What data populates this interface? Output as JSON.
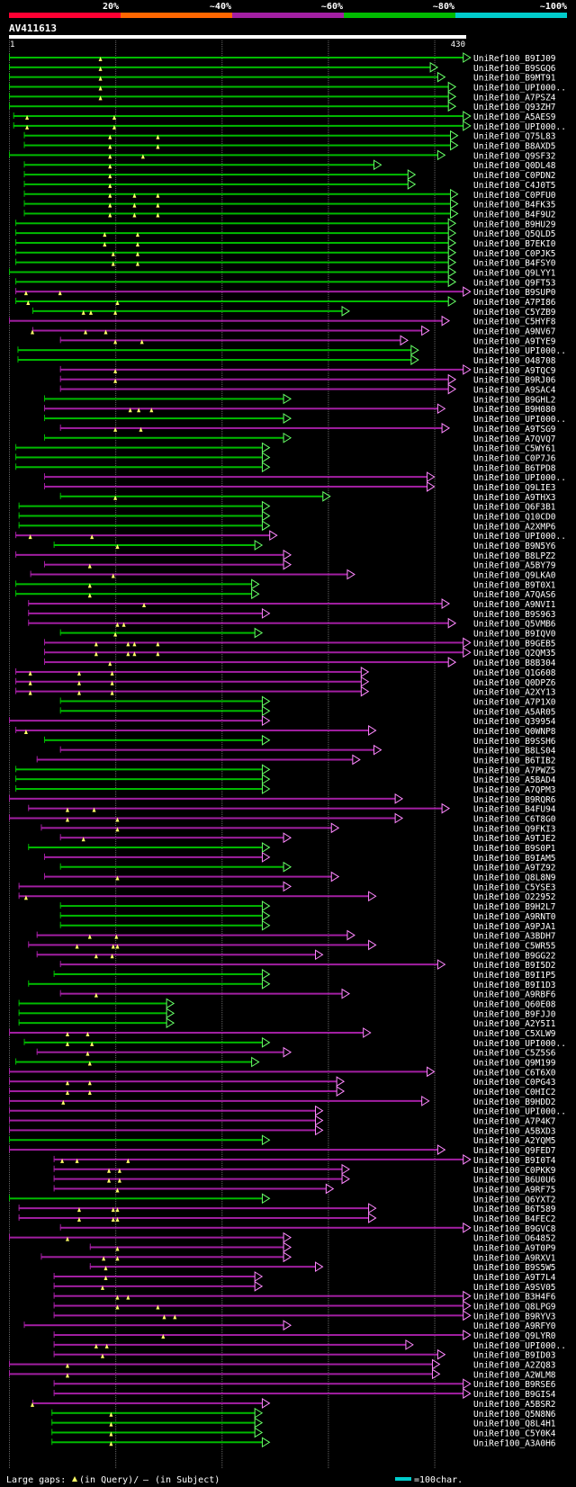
{
  "chart_data": {
    "type": "alignment-overview",
    "title": "AV411613",
    "query_start_label": "1",
    "query_length": 430,
    "query_length_label": "430",
    "scale_labels": [
      "20%",
      "~40%",
      "~60%",
      "~80%",
      "~100%"
    ],
    "identity_bins": [
      {
        "label": "20%",
        "color": "#ff0033"
      },
      {
        "label": "~40%",
        "color": "#ff6600"
      },
      {
        "label": "~60%",
        "color": "#a21fa2"
      },
      {
        "label": "~80%",
        "color": "#00bb00"
      },
      {
        "label": "~100%",
        "color": "#00cccc"
      }
    ],
    "gridlines": [
      0,
      100,
      200,
      300,
      400
    ],
    "colors": {
      "green": "#00bb00",
      "green_arrow": "#66ff66",
      "magenta": "#a21fa2",
      "magenta_arrow": "#ff88ff",
      "gap_marker": "#ffff66",
      "grid": "#666666"
    },
    "legend": {
      "prefix": "Large gaps: ",
      "query_text": "(in Query)/",
      "subject_symbol": "–",
      "subject_text": " (in Subject)",
      "scale_text": "=100char."
    },
    "hits": [
      [
        "UniRef100_B9IJ09",
        "g",
        0,
        434,
        [
          86
        ]
      ],
      [
        "UniRef100_B9SGQ6",
        "g",
        0,
        403,
        [
          86
        ]
      ],
      [
        "UniRef100_B9MT91",
        "g",
        0,
        410,
        [
          86
        ]
      ],
      [
        "UniRef100_UPI000..",
        "g",
        0,
        420,
        [
          86
        ]
      ],
      [
        "UniRef100_A7PSZ4",
        "g",
        0,
        420,
        [
          86
        ]
      ],
      [
        "UniRef100_Q93ZH7",
        "g",
        0,
        420,
        []
      ],
      [
        "UniRef100_A5AES9",
        "g",
        4,
        434,
        [
          17,
          99
        ]
      ],
      [
        "UniRef100_UPI000..",
        "g",
        4,
        434,
        [
          17,
          99
        ]
      ],
      [
        "UniRef100_Q75L83",
        "g",
        14,
        422,
        [
          95,
          140
        ]
      ],
      [
        "UniRef100_B8AXD5",
        "g",
        14,
        422,
        [
          95,
          140
        ]
      ],
      [
        "UniRef100_Q9SF32",
        "g",
        0,
        410,
        [
          95,
          126
        ]
      ],
      [
        "UniRef100_Q0DL48",
        "g",
        14,
        350,
        [
          95
        ]
      ],
      [
        "UniRef100_C0PDN2",
        "g",
        14,
        382,
        [
          95
        ]
      ],
      [
        "UniRef100_C4J0T5",
        "g",
        14,
        382,
        [
          95
        ]
      ],
      [
        "UniRef100_C0PFU0",
        "g",
        14,
        422,
        [
          95,
          118,
          140
        ]
      ],
      [
        "UniRef100_B4FK35",
        "g",
        14,
        422,
        [
          95,
          118,
          140
        ]
      ],
      [
        "UniRef100_B4F9U2",
        "g",
        14,
        422,
        [
          95,
          118,
          140
        ]
      ],
      [
        "UniRef100_B9HU29",
        "g",
        6,
        420,
        []
      ],
      [
        "UniRef100_Q5QLD5",
        "g",
        6,
        420,
        [
          90,
          121
        ]
      ],
      [
        "UniRef100_B7EKI0",
        "g",
        6,
        420,
        [
          90,
          121
        ]
      ],
      [
        "UniRef100_C0PJK5",
        "g",
        6,
        420,
        [
          98,
          121
        ]
      ],
      [
        "UniRef100_B4FSY0",
        "g",
        6,
        420,
        [
          98,
          121
        ]
      ],
      [
        "UniRef100_Q9LYY1",
        "g",
        0,
        420,
        []
      ],
      [
        "UniRef100_Q9FT53",
        "g",
        6,
        420,
        []
      ],
      [
        "UniRef100_B9SUP0",
        "m",
        6,
        434,
        [
          16,
          48
        ]
      ],
      [
        "UniRef100_A7PI86",
        "g",
        6,
        420,
        [
          18,
          102
        ]
      ],
      [
        "UniRef100_C5YZB9",
        "g",
        22,
        320,
        [
          70,
          77,
          100
        ]
      ],
      [
        "UniRef100_C5HYF8",
        "m",
        0,
        414,
        []
      ],
      [
        "UniRef100_A9NV67",
        "m",
        22,
        395,
        [
          22,
          72,
          91
        ]
      ],
      [
        "UniRef100_A9TYE9",
        "m",
        48,
        375,
        [
          100,
          125
        ]
      ],
      [
        "UniRef100_UPI000..",
        "g",
        8,
        385,
        []
      ],
      [
        "UniRef100_O48708",
        "g",
        8,
        385,
        []
      ],
      [
        "UniRef100_A9TQC9",
        "m",
        48,
        434,
        [
          100
        ]
      ],
      [
        "UniRef100_B9RJ06",
        "m",
        48,
        420,
        [
          100
        ]
      ],
      [
        "UniRef100_A9SAC4",
        "m",
        48,
        420,
        []
      ],
      [
        "UniRef100_B9GHL2",
        "g",
        33,
        265,
        []
      ],
      [
        "UniRef100_B9H080",
        "m",
        33,
        410,
        [
          114,
          122,
          134
        ]
      ],
      [
        "UniRef100_UPI000..",
        "g",
        33,
        265,
        []
      ],
      [
        "UniRef100_A9TSG9",
        "m",
        48,
        414,
        [
          100,
          124
        ]
      ],
      [
        "UniRef100_A7QVQ7",
        "g",
        33,
        265,
        []
      ],
      [
        "UniRef100_C5WY61",
        "g",
        6,
        245,
        []
      ],
      [
        "UniRef100_C0P7J6",
        "g",
        6,
        245,
        []
      ],
      [
        "UniRef100_B6TPD8",
        "g",
        6,
        245,
        []
      ],
      [
        "UniRef100_UPI000..",
        "m",
        33,
        400,
        []
      ],
      [
        "UniRef100_Q9LIE3",
        "m",
        33,
        400,
        []
      ],
      [
        "UniRef100_A9THX3",
        "g",
        48,
        302,
        [
          100
        ]
      ],
      [
        "UniRef100_Q6F3B1",
        "g",
        9,
        245,
        []
      ],
      [
        "UniRef100_Q10CD0",
        "g",
        9,
        245,
        []
      ],
      [
        "UniRef100_A2XMP6",
        "g",
        9,
        245,
        []
      ],
      [
        "UniRef100_UPI000..",
        "m",
        6,
        252,
        [
          20,
          78
        ]
      ],
      [
        "UniRef100_B9N5Y6",
        "g",
        42,
        238,
        [
          102
        ]
      ],
      [
        "UniRef100_B8LPZ2",
        "m",
        6,
        265,
        []
      ],
      [
        "UniRef100_A5BY79",
        "m",
        33,
        265,
        [
          76
        ]
      ],
      [
        "UniRef100_Q9LKA0",
        "m",
        20,
        325,
        [
          98
        ]
      ],
      [
        "UniRef100_B9T0X1",
        "g",
        6,
        235,
        [
          76
        ]
      ],
      [
        "UniRef100_A7QAS6",
        "g",
        6,
        235,
        [
          76
        ]
      ],
      [
        "UniRef100_A9NVI1",
        "m",
        18,
        414,
        [
          127
        ]
      ],
      [
        "UniRef100_B9S963",
        "m",
        18,
        245,
        []
      ],
      [
        "UniRef100_Q5VMB6",
        "m",
        18,
        420,
        [
          102,
          108
        ]
      ],
      [
        "UniRef100_B9IQV0",
        "g",
        48,
        238,
        [
          100
        ]
      ],
      [
        "UniRef100_B9GEB5",
        "m",
        33,
        434,
        [
          82,
          112,
          118,
          140
        ]
      ],
      [
        "UniRef100_Q2QM35",
        "m",
        33,
        434,
        [
          82,
          112,
          118,
          140
        ]
      ],
      [
        "UniRef100_B8B304",
        "m",
        33,
        420,
        [
          95
        ]
      ],
      [
        "UniRef100_Q1G608",
        "m",
        6,
        338,
        [
          20,
          66,
          97
        ]
      ],
      [
        "UniRef100_Q0DPZ6",
        "m",
        6,
        338,
        [
          20,
          66,
          97
        ]
      ],
      [
        "UniRef100_A2XY13",
        "m",
        6,
        338,
        [
          20,
          66,
          97
        ]
      ],
      [
        "UniRef100_A7P1X0",
        "g",
        48,
        245,
        []
      ],
      [
        "UniRef100_A5AR05",
        "g",
        48,
        245,
        []
      ],
      [
        "UniRef100_Q39954",
        "m",
        0,
        245,
        []
      ],
      [
        "UniRef100_Q0WNP8",
        "m",
        6,
        345,
        [
          16
        ]
      ],
      [
        "UniRef100_B9SSH6",
        "g",
        33,
        245,
        []
      ],
      [
        "UniRef100_B8LS04",
        "m",
        48,
        350,
        []
      ],
      [
        "UniRef100_B6TIB2",
        "m",
        26,
        330,
        []
      ],
      [
        "UniRef100_A7PWZ5",
        "g",
        6,
        245,
        []
      ],
      [
        "UniRef100_A5BAD4",
        "g",
        6,
        245,
        []
      ],
      [
        "UniRef100_A7QPM3",
        "g",
        6,
        245,
        []
      ],
      [
        "UniRef100_B9RQR6",
        "m",
        0,
        370,
        []
      ],
      [
        "UniRef100_B4FU94",
        "m",
        18,
        414,
        [
          55,
          80
        ]
      ],
      [
        "UniRef100_C6T8G0",
        "m",
        0,
        370,
        [
          55,
          102
        ]
      ],
      [
        "UniRef100_Q9FKI3",
        "m",
        30,
        310,
        [
          102
        ]
      ],
      [
        "UniRef100_A9TJE2",
        "m",
        48,
        265,
        [
          70
        ]
      ],
      [
        "UniRef100_B9S0P1",
        "g",
        18,
        245,
        []
      ],
      [
        "UniRef100_B9IAM5",
        "m",
        33,
        245,
        []
      ],
      [
        "UniRef100_A9TZ92",
        "g",
        48,
        265,
        []
      ],
      [
        "UniRef100_Q8L8N9",
        "m",
        33,
        310,
        [
          102
        ]
      ],
      [
        "UniRef100_C5YSE3",
        "m",
        9,
        265,
        []
      ],
      [
        "UniRef100_O22952",
        "m",
        9,
        345,
        [
          16
        ]
      ],
      [
        "UniRef100_B9H2L7",
        "g",
        48,
        245,
        []
      ],
      [
        "UniRef100_A9RNT0",
        "g",
        48,
        245,
        []
      ],
      [
        "UniRef100_A9PJA1",
        "g",
        48,
        245,
        []
      ],
      [
        "UniRef100_A3BDH7",
        "m",
        26,
        325,
        [
          76,
          101
        ]
      ],
      [
        "UniRef100_C5WR55",
        "m",
        18,
        345,
        [
          64,
          98,
          102
        ]
      ],
      [
        "UniRef100_B9GG22",
        "m",
        26,
        295,
        [
          82,
          97
        ]
      ],
      [
        "UniRef100_B9I5D2",
        "m",
        48,
        410,
        []
      ],
      [
        "UniRef100_B9I1P5",
        "g",
        42,
        245,
        []
      ],
      [
        "UniRef100_B9I1D3",
        "g",
        18,
        245,
        []
      ],
      [
        "UniRef100_A9RBF6",
        "m",
        48,
        320,
        [
          82
        ]
      ],
      [
        "UniRef100_Q60E08",
        "g",
        9,
        155,
        []
      ],
      [
        "UniRef100_B9FJJ0",
        "g",
        9,
        155,
        []
      ],
      [
        "UniRef100_A2Y5I1",
        "g",
        9,
        155,
        []
      ],
      [
        "UniRef100_C5XLW9",
        "m",
        0,
        340,
        [
          55,
          74
        ]
      ],
      [
        "UniRef100_UPI000..",
        "g",
        14,
        245,
        [
          55,
          78
        ]
      ],
      [
        "UniRef100_C5Z5S6",
        "m",
        26,
        265,
        [
          74
        ]
      ],
      [
        "UniRef100_Q9M199",
        "g",
        6,
        235,
        [
          76
        ]
      ],
      [
        "UniRef100_C6T6X0",
        "m",
        0,
        400,
        []
      ],
      [
        "UniRef100_C0PG43",
        "m",
        0,
        315,
        [
          55,
          76
        ]
      ],
      [
        "UniRef100_C0HIC2",
        "m",
        0,
        315,
        [
          55,
          76
        ]
      ],
      [
        "UniRef100_B9HDD2",
        "m",
        0,
        395,
        [
          51
        ]
      ],
      [
        "UniRef100_UPI000..",
        "m",
        0,
        295,
        []
      ],
      [
        "UniRef100_A7P4K7",
        "m",
        0,
        295,
        []
      ],
      [
        "UniRef100_A5BXD3",
        "m",
        0,
        295,
        []
      ],
      [
        "UniRef100_A2YQM5",
        "g",
        0,
        245,
        []
      ],
      [
        "UniRef100_Q9FED7",
        "m",
        0,
        410,
        []
      ],
      [
        "UniRef100_B9I0T4",
        "m",
        42,
        434,
        [
          50,
          64,
          112
        ]
      ],
      [
        "UniRef100_C0PKK9",
        "m",
        42,
        320,
        [
          94,
          104
        ]
      ],
      [
        "UniRef100_B6U0U6",
        "m",
        42,
        320,
        [
          94,
          104
        ]
      ],
      [
        "UniRef100_A9RF75",
        "m",
        42,
        305,
        [
          102
        ]
      ],
      [
        "UniRef100_Q6YXT2",
        "g",
        0,
        245,
        []
      ],
      [
        "UniRef100_B6T589",
        "m",
        9,
        345,
        [
          66,
          98,
          102
        ]
      ],
      [
        "UniRef100_B4FEC2",
        "m",
        9,
        345,
        [
          66,
          98,
          102
        ]
      ],
      [
        "UniRef100_B9GVC8",
        "m",
        48,
        434,
        []
      ],
      [
        "UniRef100_O64852",
        "m",
        0,
        265,
        [
          55
        ]
      ],
      [
        "UniRef100_A9T0P9",
        "m",
        76,
        265,
        [
          102
        ]
      ],
      [
        "UniRef100_A9RXV1",
        "m",
        30,
        265,
        [
          89,
          102
        ]
      ],
      [
        "UniRef100_B9S5W5",
        "m",
        76,
        295,
        [
          91
        ]
      ],
      [
        "UniRef100_A9T7L4",
        "m",
        42,
        238,
        [
          91
        ]
      ],
      [
        "UniRef100_A9SV05",
        "m",
        42,
        238,
        [
          88
        ]
      ],
      [
        "UniRef100_B3H4F6",
        "m",
        42,
        434,
        [
          102,
          112
        ]
      ],
      [
        "UniRef100_Q8LPG9",
        "m",
        42,
        434,
        [
          102,
          140
        ]
      ],
      [
        "UniRef100_B9RYV3",
        "m",
        42,
        434,
        [
          146,
          156
        ]
      ],
      [
        "UniRef100_A9RFY0",
        "m",
        14,
        265,
        []
      ],
      [
        "UniRef100_Q9LYR0",
        "m",
        42,
        434,
        [
          145
        ]
      ],
      [
        "UniRef100_UPI000..",
        "m",
        42,
        380,
        [
          82,
          92
        ]
      ],
      [
        "UniRef100_B9ID03",
        "m",
        42,
        410,
        [
          88
        ]
      ],
      [
        "UniRef100_A2ZQ83",
        "m",
        0,
        405,
        [
          55
        ]
      ],
      [
        "UniRef100_A2WLM8",
        "m",
        0,
        405,
        [
          55
        ]
      ],
      [
        "UniRef100_B9RSE6",
        "m",
        42,
        434,
        []
      ],
      [
        "UniRef100_B9GIS4",
        "m",
        42,
        434,
        []
      ],
      [
        "UniRef100_A5BSR2",
        "m",
        22,
        245,
        [
          22
        ]
      ],
      [
        "UniRef100_Q5N8N6",
        "g",
        40,
        238,
        [
          96
        ]
      ],
      [
        "UniRef100_Q8L4H1",
        "g",
        40,
        238,
        [
          96
        ]
      ],
      [
        "UniRef100_C5Y0K4",
        "g",
        40,
        238,
        [
          96
        ]
      ],
      [
        "UniRef100_A3A0H6",
        "g",
        40,
        245,
        [
          96
        ]
      ]
    ]
  }
}
